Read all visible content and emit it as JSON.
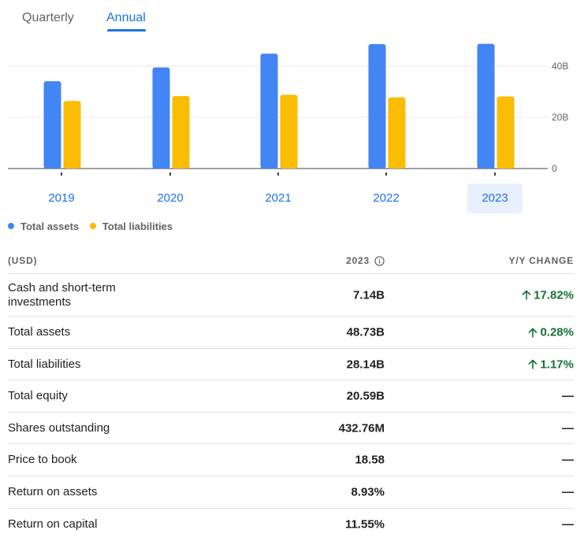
{
  "tabs": {
    "quarterly": "Quarterly",
    "annual": "Annual"
  },
  "chart_data": {
    "type": "bar",
    "categories": [
      "2019",
      "2020",
      "2021",
      "2022",
      "2023"
    ],
    "series": [
      {
        "name": "Total assets",
        "color": "#4285f4",
        "values": [
          34.1,
          39.5,
          44.9,
          48.6,
          48.73
        ]
      },
      {
        "name": "Total liabilities",
        "color": "#fbbc04",
        "values": [
          26.4,
          28.3,
          28.8,
          27.8,
          28.14
        ]
      }
    ],
    "y_ticks": [
      "0",
      "20B",
      "40B"
    ],
    "y_tick_values": [
      0,
      20,
      40
    ],
    "ylim": [
      0,
      52
    ],
    "selected_category": "2023"
  },
  "legend": {
    "assets": "Total assets",
    "liabilities": "Total liabilities"
  },
  "table": {
    "col_label": "(USD)",
    "col_value": "2023",
    "col_change": "Y/Y CHANGE",
    "rows": [
      {
        "label": "Cash and short-term investments",
        "value": "7.14B",
        "change": "17.82%",
        "dir": "up"
      },
      {
        "label": "Total assets",
        "value": "48.73B",
        "change": "0.28%",
        "dir": "up"
      },
      {
        "label": "Total liabilities",
        "value": "28.14B",
        "change": "1.17%",
        "dir": "up"
      },
      {
        "label": "Total equity",
        "value": "20.59B",
        "change": "—",
        "dir": "none"
      },
      {
        "label": "Shares outstanding",
        "value": "432.76M",
        "change": "—",
        "dir": "none"
      },
      {
        "label": "Price to book",
        "value": "18.58",
        "change": "—",
        "dir": "none"
      },
      {
        "label": "Return on assets",
        "value": "8.93%",
        "change": "—",
        "dir": "none"
      },
      {
        "label": "Return on capital",
        "value": "11.55%",
        "change": "—",
        "dir": "none"
      }
    ]
  }
}
